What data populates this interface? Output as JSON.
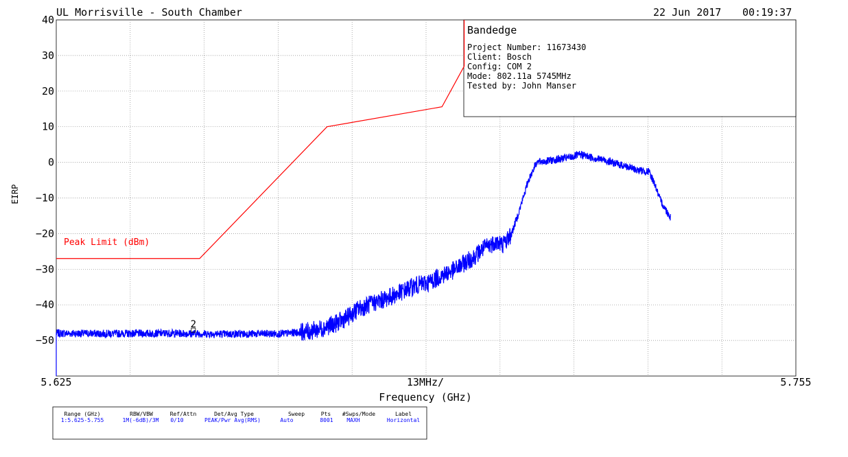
{
  "header": {
    "site": "UL Morrisville - South Chamber",
    "date": "22 Jun 2017",
    "time": "00:19:37"
  },
  "info_box": {
    "title": "Bandedge",
    "lines": [
      "Project Number: 11673430",
      "Client: Bosch",
      "Config: COM 2",
      "Mode: 802.11a 5745MHz",
      "Tested by: John Manser"
    ]
  },
  "chart_data": {
    "type": "line",
    "ylabel": "EIRP",
    "xlabel": "Frequency (GHz)",
    "x_start_label": "5.625",
    "x_stop_label": "5.755",
    "x_span_label": "13MHz/",
    "xlim": [
      5.625,
      5.755
    ],
    "ylim": [
      -60,
      40
    ],
    "y_ticks": [
      40,
      30,
      20,
      10,
      0,
      -10,
      -20,
      -30,
      -40,
      -50
    ],
    "grid": true,
    "limit_label": "Peak Limit (dBm)",
    "marker_label": "2",
    "marker": {
      "x": 5.6491,
      "y": -47.5
    },
    "limit_line": {
      "name": "Peak Limit (dBm)",
      "color": "#ff0000",
      "x": [
        5.625,
        5.6502,
        5.6726,
        5.6928,
        5.6967,
        5.6967
      ],
      "y": [
        -27,
        -27,
        10,
        15.6,
        27,
        40
      ]
    },
    "trace": {
      "color": "#0000ff",
      "points": [
        [
          5.625,
          -48
        ],
        [
          5.635,
          -48.1
        ],
        [
          5.645,
          -48
        ],
        [
          5.655,
          -48.2
        ],
        [
          5.665,
          -48.1
        ],
        [
          5.6697,
          -47.4
        ],
        [
          5.6717,
          -46.6
        ],
        [
          5.6742,
          -45.2
        ],
        [
          5.6762,
          -43.5
        ],
        [
          5.6781,
          -41.2
        ],
        [
          5.6807,
          -39.5
        ],
        [
          5.6827,
          -38.4
        ],
        [
          5.6853,
          -36.7
        ],
        [
          5.6878,
          -34.8
        ],
        [
          5.6905,
          -33.7
        ],
        [
          5.6928,
          -31.7
        ],
        [
          5.695,
          -30.2
        ],
        [
          5.6967,
          -28.3
        ],
        [
          5.6983,
          -26.7
        ],
        [
          5.7,
          -24.3
        ],
        [
          5.7022,
          -22.3
        ],
        [
          5.7035,
          -23.0
        ],
        [
          5.705,
          -20.2
        ],
        [
          5.7065,
          -13.0
        ],
        [
          5.708,
          -5.0
        ],
        [
          5.7094,
          0
        ],
        [
          5.711,
          0.3
        ],
        [
          5.713,
          0.8
        ],
        [
          5.715,
          1.3
        ],
        [
          5.7172,
          2.2
        ],
        [
          5.7195,
          1.2
        ],
        [
          5.7215,
          0.6
        ],
        [
          5.7235,
          -0.4
        ],
        [
          5.7255,
          -1.3
        ],
        [
          5.7272,
          -2.2
        ],
        [
          5.7292,
          -2.7
        ],
        [
          5.7302,
          -6.0
        ],
        [
          5.731,
          -10.0
        ],
        [
          5.732,
          -13.0
        ],
        [
          5.733,
          -15.5
        ]
      ]
    }
  },
  "settings_table": {
    "headers": [
      "Range (GHz)",
      "RBW/VBW",
      "Ref/Attn",
      "Det/Avg Type",
      "Sweep",
      "Pts",
      "#Swps/Mode",
      "Label"
    ],
    "row": [
      "1:5.625-5.755",
      "1M(-6dB)/3M",
      "0/10",
      "PEAK/Pwr Avg(RMS)",
      "Auto",
      "8001",
      "MAXH",
      "Horizontal"
    ]
  }
}
